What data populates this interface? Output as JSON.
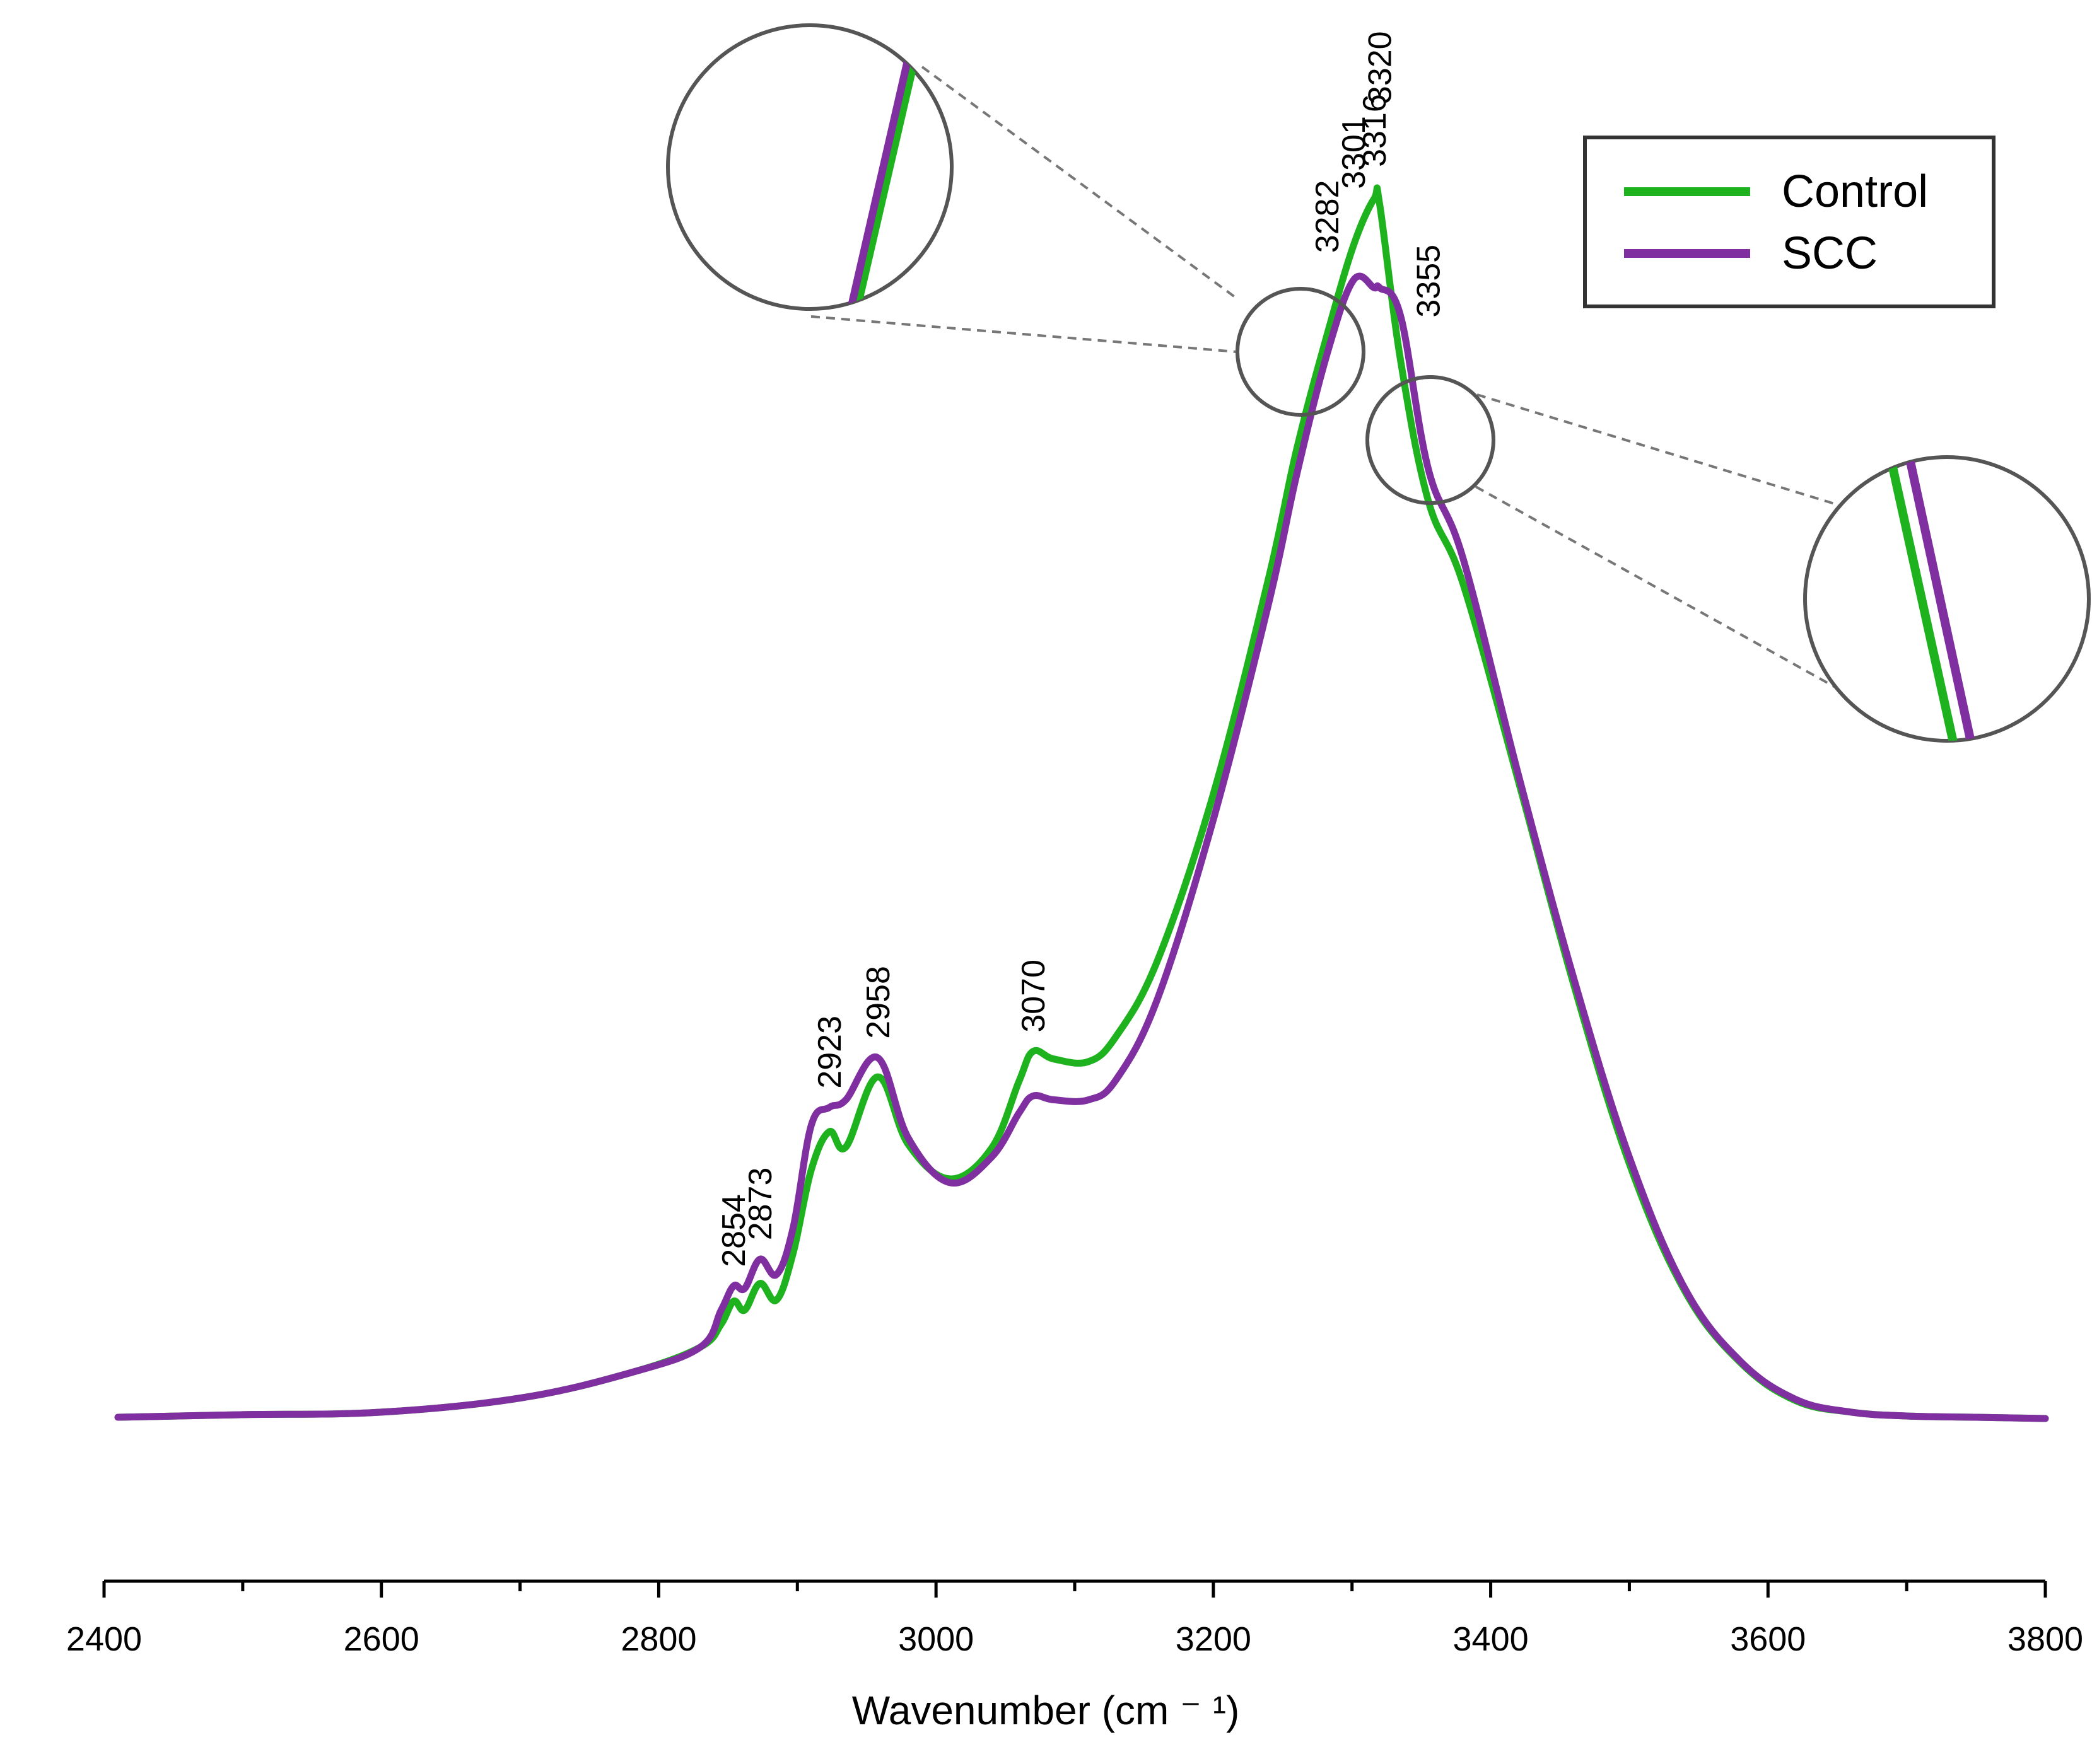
{
  "chart_data": {
    "type": "line",
    "title": "",
    "xlabel": "Wavenumber (cm ⁻ ¹)",
    "ylabel": "",
    "xlim": [
      2400,
      3800
    ],
    "ylim": [
      0,
      1
    ],
    "x_ticks": [
      2400,
      2600,
      2800,
      3000,
      3200,
      3400,
      3600,
      3800
    ],
    "x_minor_step": 100,
    "x_tick_labels": [
      "2400",
      "2600",
      "2800",
      "3000",
      "3200",
      "3400",
      "3600",
      "3800"
    ],
    "grid": false,
    "y_axis_visible": false,
    "legend_position": "top-right",
    "series": [
      {
        "name": "Control",
        "color": "#1fb21f",
        "x": [
          2410,
          2500,
          2600,
          2700,
          2780,
          2830,
          2845,
          2854,
          2862,
          2873,
          2885,
          2897,
          2910,
          2923,
          2935,
          2958,
          2980,
          3010,
          3040,
          3060,
          3070,
          3085,
          3110,
          3130,
          3160,
          3200,
          3240,
          3260,
          3282,
          3301,
          3316,
          3320,
          3335,
          3355,
          3380,
          3420,
          3460,
          3500,
          3540,
          3580,
          3620,
          3660,
          3700,
          3750,
          3800
        ],
        "values": [
          0.001,
          0.003,
          0.005,
          0.016,
          0.036,
          0.056,
          0.074,
          0.092,
          0.085,
          0.106,
          0.093,
          0.13,
          0.195,
          0.225,
          0.213,
          0.268,
          0.215,
          0.188,
          0.212,
          0.265,
          0.288,
          0.282,
          0.28,
          0.3,
          0.36,
          0.49,
          0.66,
          0.76,
          0.85,
          0.92,
          0.957,
          0.952,
          0.83,
          0.72,
          0.655,
          0.5,
          0.34,
          0.2,
          0.1,
          0.044,
          0.014,
          0.005,
          0.002,
          0.001,
          0.0
        ],
        "peak_annotations": [],
        "zoom_note": ""
      },
      {
        "name": "SCC",
        "color": "#7f2f9f",
        "x": [
          2410,
          2500,
          2600,
          2700,
          2780,
          2830,
          2845,
          2854,
          2862,
          2873,
          2885,
          2897,
          2910,
          2923,
          2935,
          2958,
          2980,
          3010,
          3040,
          3060,
          3070,
          3085,
          3110,
          3130,
          3160,
          3200,
          3240,
          3260,
          3282,
          3301,
          3316,
          3320,
          3335,
          3355,
          3380,
          3420,
          3460,
          3500,
          3540,
          3580,
          3620,
          3660,
          3700,
          3750,
          3800
        ],
        "values": [
          0.001,
          0.003,
          0.005,
          0.016,
          0.036,
          0.056,
          0.085,
          0.104,
          0.102,
          0.125,
          0.113,
          0.15,
          0.23,
          0.244,
          0.25,
          0.283,
          0.22,
          0.185,
          0.205,
          0.24,
          0.253,
          0.25,
          0.25,
          0.266,
          0.33,
          0.47,
          0.64,
          0.74,
          0.835,
          0.893,
          0.887,
          0.887,
          0.865,
          0.745,
          0.675,
          0.505,
          0.345,
          0.205,
          0.102,
          0.045,
          0.015,
          0.005,
          0.002,
          0.001,
          0.0
        ]
      }
    ],
    "annotations": [
      "2854",
      "2873",
      "2923",
      "2958",
      "3070",
      "3282",
      "3301",
      "3316",
      "3320",
      "3355"
    ],
    "annotation_x": [
      2854,
      2873,
      2923,
      2958,
      3070,
      3282,
      3301,
      3316,
      3320,
      3355
    ],
    "zoom_callouts": [
      {
        "name": "zoom-left",
        "target_x": 3265,
        "target_y": 0.85
      },
      {
        "name": "zoom-right",
        "target_x": 3358,
        "target_y": 0.765
      }
    ]
  }
}
